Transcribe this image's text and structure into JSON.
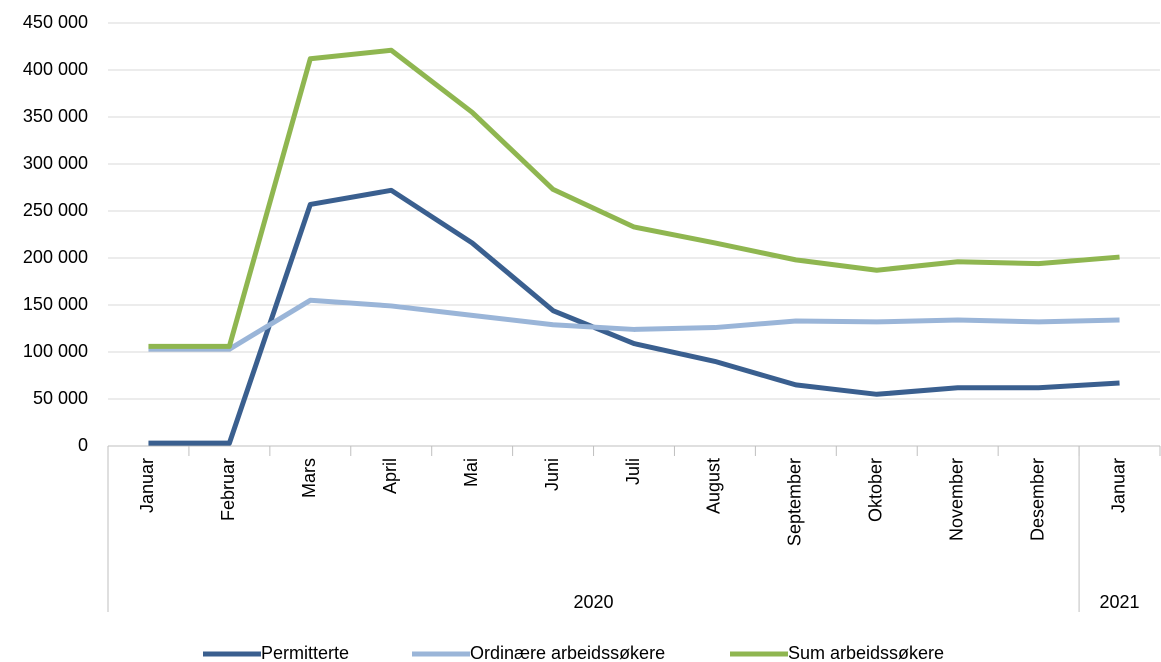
{
  "chart_data": {
    "type": "line",
    "categories": [
      "Januar",
      "Februar",
      "Mars",
      "April",
      "Mai",
      "Juni",
      "Juli",
      "August",
      "September",
      "Oktober",
      "November",
      "Desember",
      "Januar"
    ],
    "x_groups": [
      {
        "label": "2020",
        "categories": 12
      },
      {
        "label": "2021",
        "categories": 1
      }
    ],
    "series": [
      {
        "name": "Permitterte",
        "color": "#3a5f8f",
        "values": [
          3000,
          3000,
          257000,
          272000,
          216000,
          144000,
          109000,
          90000,
          65000,
          55000,
          62000,
          62000,
          67000
        ]
      },
      {
        "name": "Ordinære arbeidssøkere",
        "color": "#9ab5d8",
        "values": [
          103000,
          103000,
          155000,
          149000,
          139000,
          129000,
          124000,
          126000,
          133000,
          132000,
          134000,
          132000,
          134000
        ]
      },
      {
        "name": "Sum arbeidssøkere",
        "color": "#8fb650",
        "values": [
          106000,
          106000,
          412000,
          421000,
          355000,
          273000,
          233000,
          216000,
          198000,
          187000,
          196000,
          194000,
          201000
        ]
      }
    ],
    "ylim": [
      0,
      450000
    ],
    "yticks": [
      0,
      {
        "value": 50000,
        "label": "50 000"
      },
      {
        "value": 100000,
        "label": "100 000"
      },
      {
        "value": 150000,
        "label": "150 000"
      },
      {
        "value": 200000,
        "label": "200 000"
      },
      {
        "value": 250000,
        "label": "250 000"
      },
      {
        "value": 300000,
        "label": "300 000"
      },
      {
        "value": 350000,
        "label": "350 000"
      },
      {
        "value": 400000,
        "label": "400 000"
      },
      {
        "value": 450000,
        "label": "450 000"
      }
    ],
    "grid": true,
    "legend": "bottom"
  }
}
